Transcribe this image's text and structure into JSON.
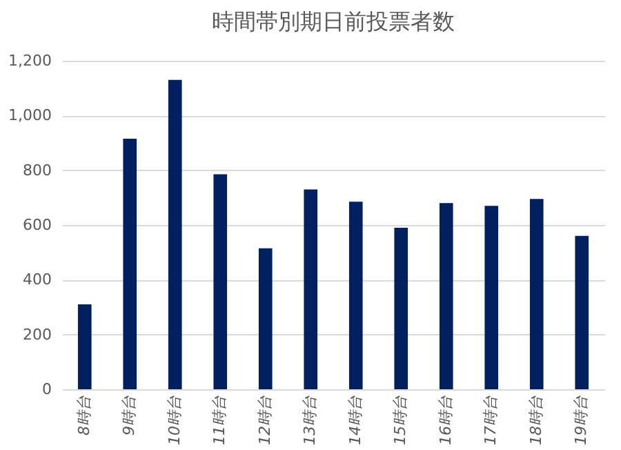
{
  "chart_data": {
    "type": "bar",
    "title": "時間帯別期日前投票者数",
    "categories": [
      "8時台",
      "9時台",
      "10時台",
      "11時台",
      "12時台",
      "13時台",
      "14時台",
      "15時台",
      "16時台",
      "17時台",
      "18時台",
      "19時台"
    ],
    "values": [
      310,
      915,
      1130,
      785,
      515,
      730,
      685,
      590,
      680,
      670,
      695,
      560
    ],
    "color": "#002060",
    "ylim": [
      0,
      1200
    ],
    "yticks": [
      0,
      200,
      400,
      600,
      800,
      {
        "value": 1000,
        "label": "1,000"
      },
      {
        "value": 1200,
        "label": "1,200"
      }
    ],
    "grid": "y"
  }
}
